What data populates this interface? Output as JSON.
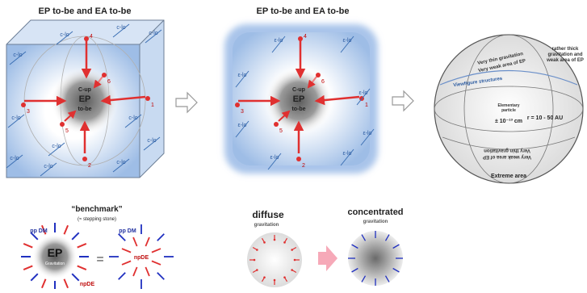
{
  "panels": [
    {
      "title": "EP to-be and EA to-be",
      "center": [
        "C-up",
        "EP",
        "to-be"
      ],
      "numbers": [
        "1",
        "2",
        "3",
        "4",
        "5",
        "6"
      ],
      "edge_labels": [
        "c-lo",
        "c-lo",
        "c-lo",
        "c-lo",
        "c-lo",
        "c-lo",
        "c-lo",
        "c-lo",
        "c-lo",
        "c-lo",
        "c-lo"
      ]
    },
    {
      "title": "EP to-be and EA to-be",
      "center": [
        "C-up",
        "EP",
        "to-be"
      ],
      "numbers": [
        "1",
        "2",
        "3",
        "4",
        "5",
        "6"
      ],
      "edge_labels": [
        "ε-lo",
        "ε-lo",
        "ε-lo",
        "ε-lo",
        "ε-lo",
        "ε-lo",
        "ε-lo",
        "ε-lo"
      ]
    },
    {
      "labels": [
        "Very thin gravitation",
        "Very weak area of EP",
        "rather thick",
        "gravitation and",
        "weak area of EP",
        "Viewfigure structures",
        "r = 10 - 50 AU",
        "Elementary",
        "particle",
        "± 10⁻¹³ cm",
        "Very thin gravitation",
        "Very weak area of EP",
        "Extreme area"
      ]
    }
  ],
  "benchmark": {
    "title": "“benchmark”",
    "subtitle": "(≈ stepping stone)",
    "left": [
      "pp DM",
      "EP",
      "Gravitation",
      "npDE"
    ],
    "equals": "=",
    "right": [
      "pp DM",
      "npDE"
    ]
  },
  "diffuse": {
    "title": "diffuse",
    "subtitle": "gravitation"
  },
  "concentrated": {
    "title": "concentrated",
    "subtitle": "gravitation"
  }
}
